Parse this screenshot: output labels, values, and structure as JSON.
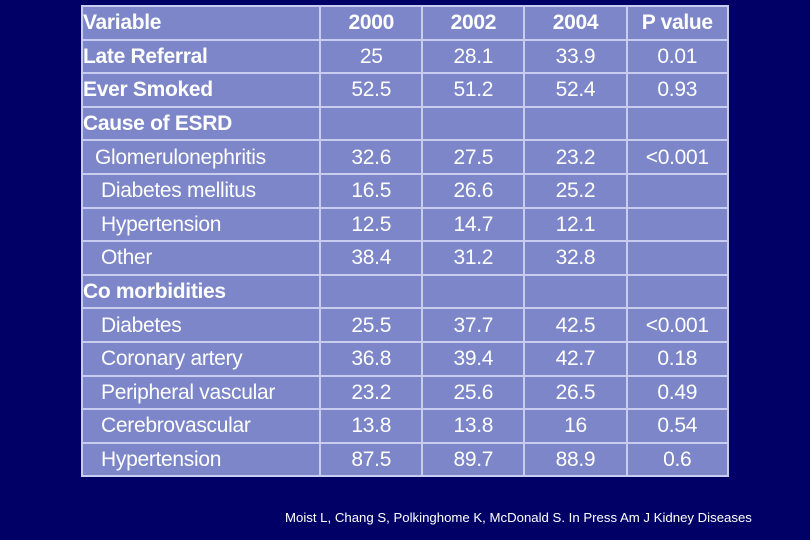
{
  "table": {
    "headers": [
      "Variable",
      "2000",
      "2002",
      "2004",
      "P value"
    ],
    "rows": [
      {
        "variable": "Late Referral",
        "y2000": "25",
        "y2002": "28.1",
        "y2004": "33.9",
        "p": "0.01"
      },
      {
        "variable": "Ever Smoked",
        "y2000": "52.5",
        "y2002": "51.2",
        "y2004": "52.4",
        "p": "0.93"
      },
      {
        "variable": "Cause of ESRD",
        "y2000": "",
        "y2002": "",
        "y2004": "",
        "p": ""
      },
      {
        "variable": "Glomerulonephritis",
        "y2000": "32.6",
        "y2002": "27.5",
        "y2004": "23.2",
        "p": "<0.001"
      },
      {
        "variable": "Diabetes mellitus",
        "y2000": "16.5",
        "y2002": "26.6",
        "y2004": "25.2",
        "p": ""
      },
      {
        "variable": "Hypertension",
        "y2000": "12.5",
        "y2002": "14.7",
        "y2004": "12.1",
        "p": ""
      },
      {
        "variable": "Other",
        "y2000": "38.4",
        "y2002": "31.2",
        "y2004": "32.8",
        "p": ""
      },
      {
        "variable": "Co morbidities",
        "y2000": "",
        "y2002": "",
        "y2004": "",
        "p": ""
      },
      {
        "variable": "Diabetes",
        "y2000": "25.5",
        "y2002": "37.7",
        "y2004": "42.5",
        "p": "<0.001"
      },
      {
        "variable": "Coronary artery",
        "y2000": "36.8",
        "y2002": "39.4",
        "y2004": "42.7",
        "p": "0.18"
      },
      {
        "variable": "Peripheral vascular",
        "y2000": "23.2",
        "y2002": "25.6",
        "y2004": "26.5",
        "p": "0.49"
      },
      {
        "variable": "Cerebrovascular",
        "y2000": "13.8",
        "y2002": "13.8",
        "y2004": "16",
        "p": "0.54"
      },
      {
        "variable": "Hypertension",
        "y2000": "87.5",
        "y2002": "89.7",
        "y2004": "88.9",
        "p": "0.6"
      }
    ]
  },
  "citation": "Moist L, Chang S, Polkinghome K, McDonald S. In Press Am J Kidney Diseases",
  "colors": {
    "background": "#000066",
    "table_fill": "#7c86c8",
    "grid_lines": "#c8ccee",
    "text": "#ffffff"
  }
}
